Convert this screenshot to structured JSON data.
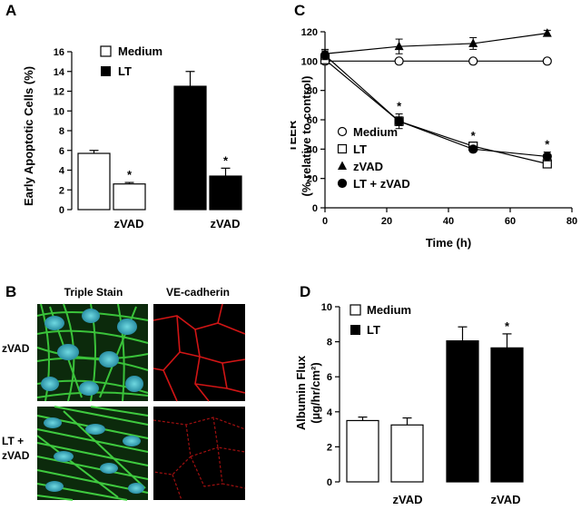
{
  "panel_a": {
    "label": "A",
    "legend": {
      "medium": "Medium",
      "lt": "LT"
    },
    "ylabel": "Early Apoptotic Cells (%)",
    "zvad_label": "zVAD",
    "star": "*"
  },
  "panel_b": {
    "label": "B",
    "col_titles": [
      "Triple Stain",
      "VE-cadherin"
    ],
    "row_labels": [
      "zVAD",
      "LT +",
      "zVAD"
    ]
  },
  "panel_c": {
    "label": "C",
    "ylabel_line1": "TEER",
    "ylabel_line2": "(% relative to control)",
    "xlabel": "Time (h)",
    "star": "*"
  },
  "panel_d": {
    "label": "D",
    "legend": {
      "medium": "Medium",
      "lt": "LT"
    },
    "ylabel_line1": "Albumin Flux",
    "ylabel_line2": "(µg/hr/cm²)",
    "zvad_label": "zVAD",
    "star": "*"
  },
  "chart_data": [
    {
      "panel": "A",
      "type": "bar",
      "ylabel": "Early Apoptotic Cells (%)",
      "ylim": [
        0,
        16
      ],
      "yticks": [
        0,
        2,
        4,
        6,
        8,
        10,
        12,
        14,
        16
      ],
      "legend_position": "top-left",
      "groups": [
        {
          "series": "Medium",
          "bars": [
            {
              "label": "",
              "value": 5.7,
              "error": 0.3,
              "sig": false
            },
            {
              "label": "zVAD",
              "value": 2.6,
              "error": 0.15,
              "sig": true
            }
          ]
        },
        {
          "series": "LT",
          "bars": [
            {
              "label": "",
              "value": 12.5,
              "error": 1.5,
              "sig": false
            },
            {
              "label": "zVAD",
              "value": 3.4,
              "error": 0.8,
              "sig": true
            }
          ]
        }
      ],
      "colors": {
        "Medium": "#ffffff",
        "LT": "#000000"
      }
    },
    {
      "panel": "C",
      "type": "line",
      "ylabel": "TEER (% relative to control)",
      "xlabel": "Time (h)",
      "xlim": [
        0,
        80
      ],
      "ylim": [
        0,
        120
      ],
      "xticks": [
        0,
        20,
        40,
        60,
        80
      ],
      "yticks": [
        0,
        20,
        40,
        60,
        80,
        100,
        120
      ],
      "legend_position": "bottom-left",
      "series": [
        {
          "name": "Medium",
          "marker": "circle-open",
          "x": [
            0,
            24,
            48,
            72
          ],
          "y": [
            100,
            100,
            100,
            100
          ],
          "err": [
            0,
            0,
            0,
            0
          ]
        },
        {
          "name": "LT",
          "marker": "square-open",
          "x": [
            0,
            24,
            48,
            72
          ],
          "y": [
            101,
            59,
            42,
            30
          ],
          "err": [
            0,
            3,
            2,
            2
          ]
        },
        {
          "name": "zVAD",
          "marker": "triangle-filled",
          "x": [
            0,
            24,
            48,
            72
          ],
          "y": [
            105,
            110,
            112,
            119
          ],
          "err": [
            3,
            5,
            4,
            2
          ]
        },
        {
          "name": "LT + zVAD",
          "marker": "circle-filled",
          "x": [
            0,
            24,
            48,
            72
          ],
          "y": [
            104,
            59,
            40,
            35
          ],
          "err": [
            3,
            5,
            2,
            3
          ]
        }
      ],
      "significance_x": [
        24,
        48,
        72
      ]
    },
    {
      "panel": "D",
      "type": "bar",
      "ylabel": "Albumin Flux (µg/hr/cm²)",
      "ylim": [
        0,
        10
      ],
      "yticks": [
        0,
        2,
        4,
        6,
        8,
        10
      ],
      "legend_position": "top-left",
      "groups": [
        {
          "series": "Medium",
          "bars": [
            {
              "label": "",
              "value": 3.5,
              "error": 0.2,
              "sig": false
            },
            {
              "label": "zVAD",
              "value": 3.25,
              "error": 0.4,
              "sig": false
            }
          ]
        },
        {
          "series": "LT",
          "bars": [
            {
              "label": "",
              "value": 8.05,
              "error": 0.8,
              "sig": false
            },
            {
              "label": "zVAD",
              "value": 7.65,
              "error": 0.8,
              "sig": true
            }
          ]
        }
      ],
      "colors": {
        "Medium": "#ffffff",
        "LT": "#000000"
      }
    }
  ]
}
